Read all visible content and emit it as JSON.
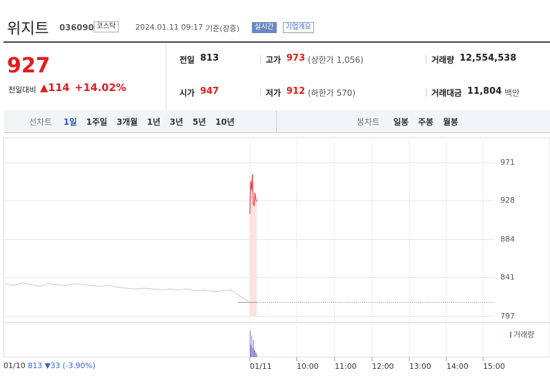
{
  "header": {
    "name": "위지트",
    "code": "036090",
    "market": "코스닥",
    "datetime": "2024.01.11 09:17",
    "basis": "기준(장중)",
    "realtime": "실시간",
    "company": "기업개요"
  },
  "quote": {
    "price": "927",
    "change_label": "전일대비",
    "change": "114",
    "change_pct": "+14.02%"
  },
  "stats": [
    {
      "label": "전일",
      "value": "813"
    },
    {
      "label": "고가",
      "value": "973",
      "note": "(상한가 1,056)"
    },
    {
      "label": "거래량",
      "value": "12,554,538"
    },
    {
      "label": "시가",
      "value": "947"
    },
    {
      "label": "저가",
      "value": "912",
      "note": "(하한가 570)"
    },
    {
      "label": "거래대금",
      "value": "11,804",
      "note": "백만"
    }
  ],
  "tabs": {
    "line_label": "선차트",
    "line_items": [
      "1일",
      "1주일",
      "3개월",
      "1년",
      "3년",
      "5년",
      "10년"
    ],
    "candle_label": "봉차트",
    "candle_items": [
      "일봉",
      "주봉",
      "월봉"
    ]
  },
  "chart": {
    "type": "line",
    "ylim": [
      797,
      971
    ],
    "yticks": [
      797,
      841,
      884,
      928,
      971
    ],
    "prev_values": [
      834,
      832,
      835,
      833,
      831,
      834,
      833,
      832,
      834,
      833,
      832,
      831,
      832,
      830,
      829,
      828,
      829,
      828,
      827,
      828,
      827,
      828,
      826,
      827,
      825,
      826,
      827,
      820,
      814
    ],
    "today_values": [
      913,
      950,
      940,
      958,
      925,
      922,
      937,
      930,
      927
    ],
    "reference": 813,
    "color": "#e34b4b",
    "prev_color": "#c8c8c8",
    "volume_label": "거래량",
    "volume_ylim": [
      0,
      100
    ],
    "volume_values": [
      85,
      40,
      70,
      30,
      55,
      25,
      20,
      15,
      10
    ],
    "x_labels": [
      "01/10",
      "01/11",
      "10:00",
      "11:00",
      "12:00",
      "13:00",
      "14:00",
      "15:00"
    ]
  },
  "footer": {
    "date": "01/10",
    "close": 813,
    "change": "▼33",
    "change_pct": "(-3.90%)"
  }
}
